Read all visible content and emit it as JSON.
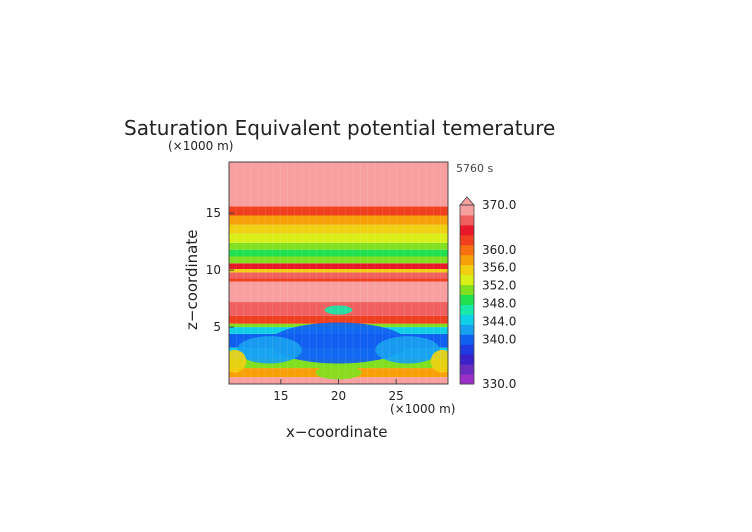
{
  "chart_data": {
    "type": "heatmap",
    "title": "Saturation Equivalent potential temerature",
    "time_label": "5760 s",
    "x_axis": {
      "label": "x−coordinate",
      "unit": "(×1000 m)",
      "range": [
        10.5,
        29.5
      ],
      "ticks": [
        15,
        20,
        25
      ]
    },
    "y_axis": {
      "label": "z−coordinate",
      "unit": "(×1000 m)",
      "range": [
        0,
        19.5
      ],
      "ticks": [
        5,
        10,
        15
      ]
    },
    "colorbar": {
      "range": [
        330,
        370
      ],
      "labels": [
        "370.0",
        "360.0",
        "356.0",
        "352.0",
        "348.0",
        "344.0",
        "340.0",
        "330.0"
      ],
      "label_values": [
        370,
        360,
        356,
        352,
        348,
        344,
        340,
        330
      ],
      "extend_top": true,
      "colors": [
        "#9b30c8",
        "#6a2cc0",
        "#3a20c8",
        "#1e3ae0",
        "#1060f0",
        "#18a0f0",
        "#10d0e8",
        "#18e8a8",
        "#20e050",
        "#80e020",
        "#d8f018",
        "#f0d010",
        "#f8a008",
        "#f87010",
        "#f04020",
        "#e81828",
        "#f06060",
        "#f8a0a0"
      ]
    },
    "bands": [
      {
        "z": [
          0.0,
          0.6
        ],
        "value": 368
      },
      {
        "z": [
          0.6,
          1.4
        ],
        "value": 357
      },
      {
        "z": [
          1.4,
          2.2
        ],
        "value": 350
      },
      {
        "z": [
          2.2,
          3.2
        ],
        "value": 345
      },
      {
        "z": [
          3.2,
          4.4
        ],
        "value": 341
      },
      {
        "z": [
          4.4,
          5.0
        ],
        "value": 344
      },
      {
        "z": [
          5.0,
          5.3
        ],
        "value": 352
      },
      {
        "z": [
          5.3,
          6.0
        ],
        "value": 362
      },
      {
        "z": [
          6.0,
          7.2
        ],
        "value": 366
      },
      {
        "z": [
          7.2,
          9.0
        ],
        "value": 368
      },
      {
        "z": [
          9.0,
          9.3
        ],
        "value": 362
      },
      {
        "z": [
          9.3,
          9.8
        ],
        "value": 366
      },
      {
        "z": [
          9.8,
          10.1
        ],
        "value": 356
      },
      {
        "z": [
          10.1,
          10.6
        ],
        "value": 364
      },
      {
        "z": [
          10.6,
          11.2
        ],
        "value": 352
      },
      {
        "z": [
          11.2,
          11.8
        ],
        "value": 348
      },
      {
        "z": [
          11.8,
          12.4
        ],
        "value": 350
      },
      {
        "z": [
          12.4,
          13.2
        ],
        "value": 354
      },
      {
        "z": [
          13.2,
          14.0
        ],
        "value": 356
      },
      {
        "z": [
          14.0,
          14.8
        ],
        "value": 358
      },
      {
        "z": [
          14.8,
          15.6
        ],
        "value": 362
      },
      {
        "z": [
          15.6,
          19.5
        ],
        "value": 369
      }
    ],
    "anomalies": [
      {
        "x": 20.0,
        "z": 3.6,
        "rx": 6.0,
        "rz": 1.8,
        "value": 339
      },
      {
        "x": 14.0,
        "z": 3.0,
        "rx": 2.8,
        "rz": 1.2,
        "value": 343
      },
      {
        "x": 26.0,
        "z": 3.0,
        "rx": 2.8,
        "rz": 1.2,
        "value": 343
      },
      {
        "x": 20.0,
        "z": 6.5,
        "rx": 1.2,
        "rz": 0.4,
        "value": 347
      },
      {
        "x": 11.0,
        "z": 2.0,
        "rx": 1.0,
        "rz": 1.0,
        "value": 356
      },
      {
        "x": 29.0,
        "z": 2.0,
        "rx": 1.0,
        "rz": 1.0,
        "value": 356
      },
      {
        "x": 20.0,
        "z": 1.0,
        "rx": 2.0,
        "rz": 0.6,
        "value": 350
      }
    ]
  }
}
